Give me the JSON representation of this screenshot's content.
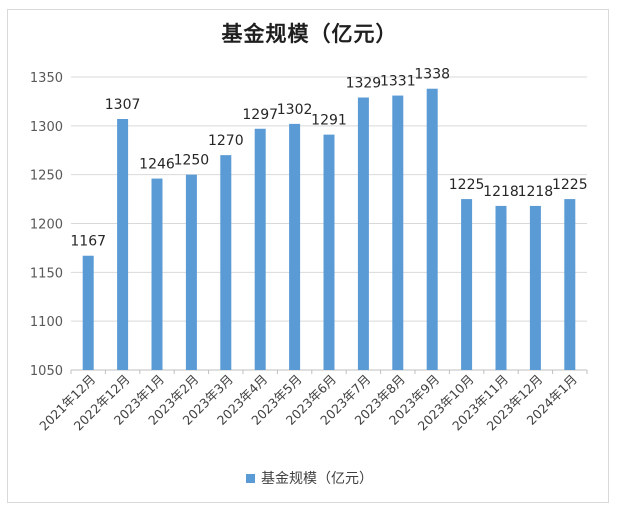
{
  "chart_data": {
    "type": "bar",
    "title": "基金规模（亿元）",
    "categories": [
      "2021年12月",
      "2022年12月",
      "2023年1月",
      "2023年2月",
      "2023年3月",
      "2023年4月",
      "2023年5月",
      "2023年6月",
      "2023年7月",
      "2023年8月",
      "2023年9月",
      "2023年10月",
      "2023年11月",
      "2023年12月",
      "2024年1月"
    ],
    "series": [
      {
        "name": "基金规模（亿元）",
        "values": [
          1167,
          1307,
          1246,
          1250,
          1270,
          1297,
          1302,
          1291,
          1329,
          1331,
          1338,
          1225,
          1218,
          1218,
          1225
        ]
      }
    ],
    "ylim": [
      1050,
      1350
    ],
    "yticks": [
      1050,
      1100,
      1150,
      1200,
      1250,
      1300,
      1350
    ],
    "grid": true,
    "legend": "bottom",
    "bar_color": "#5b9bd5"
  }
}
